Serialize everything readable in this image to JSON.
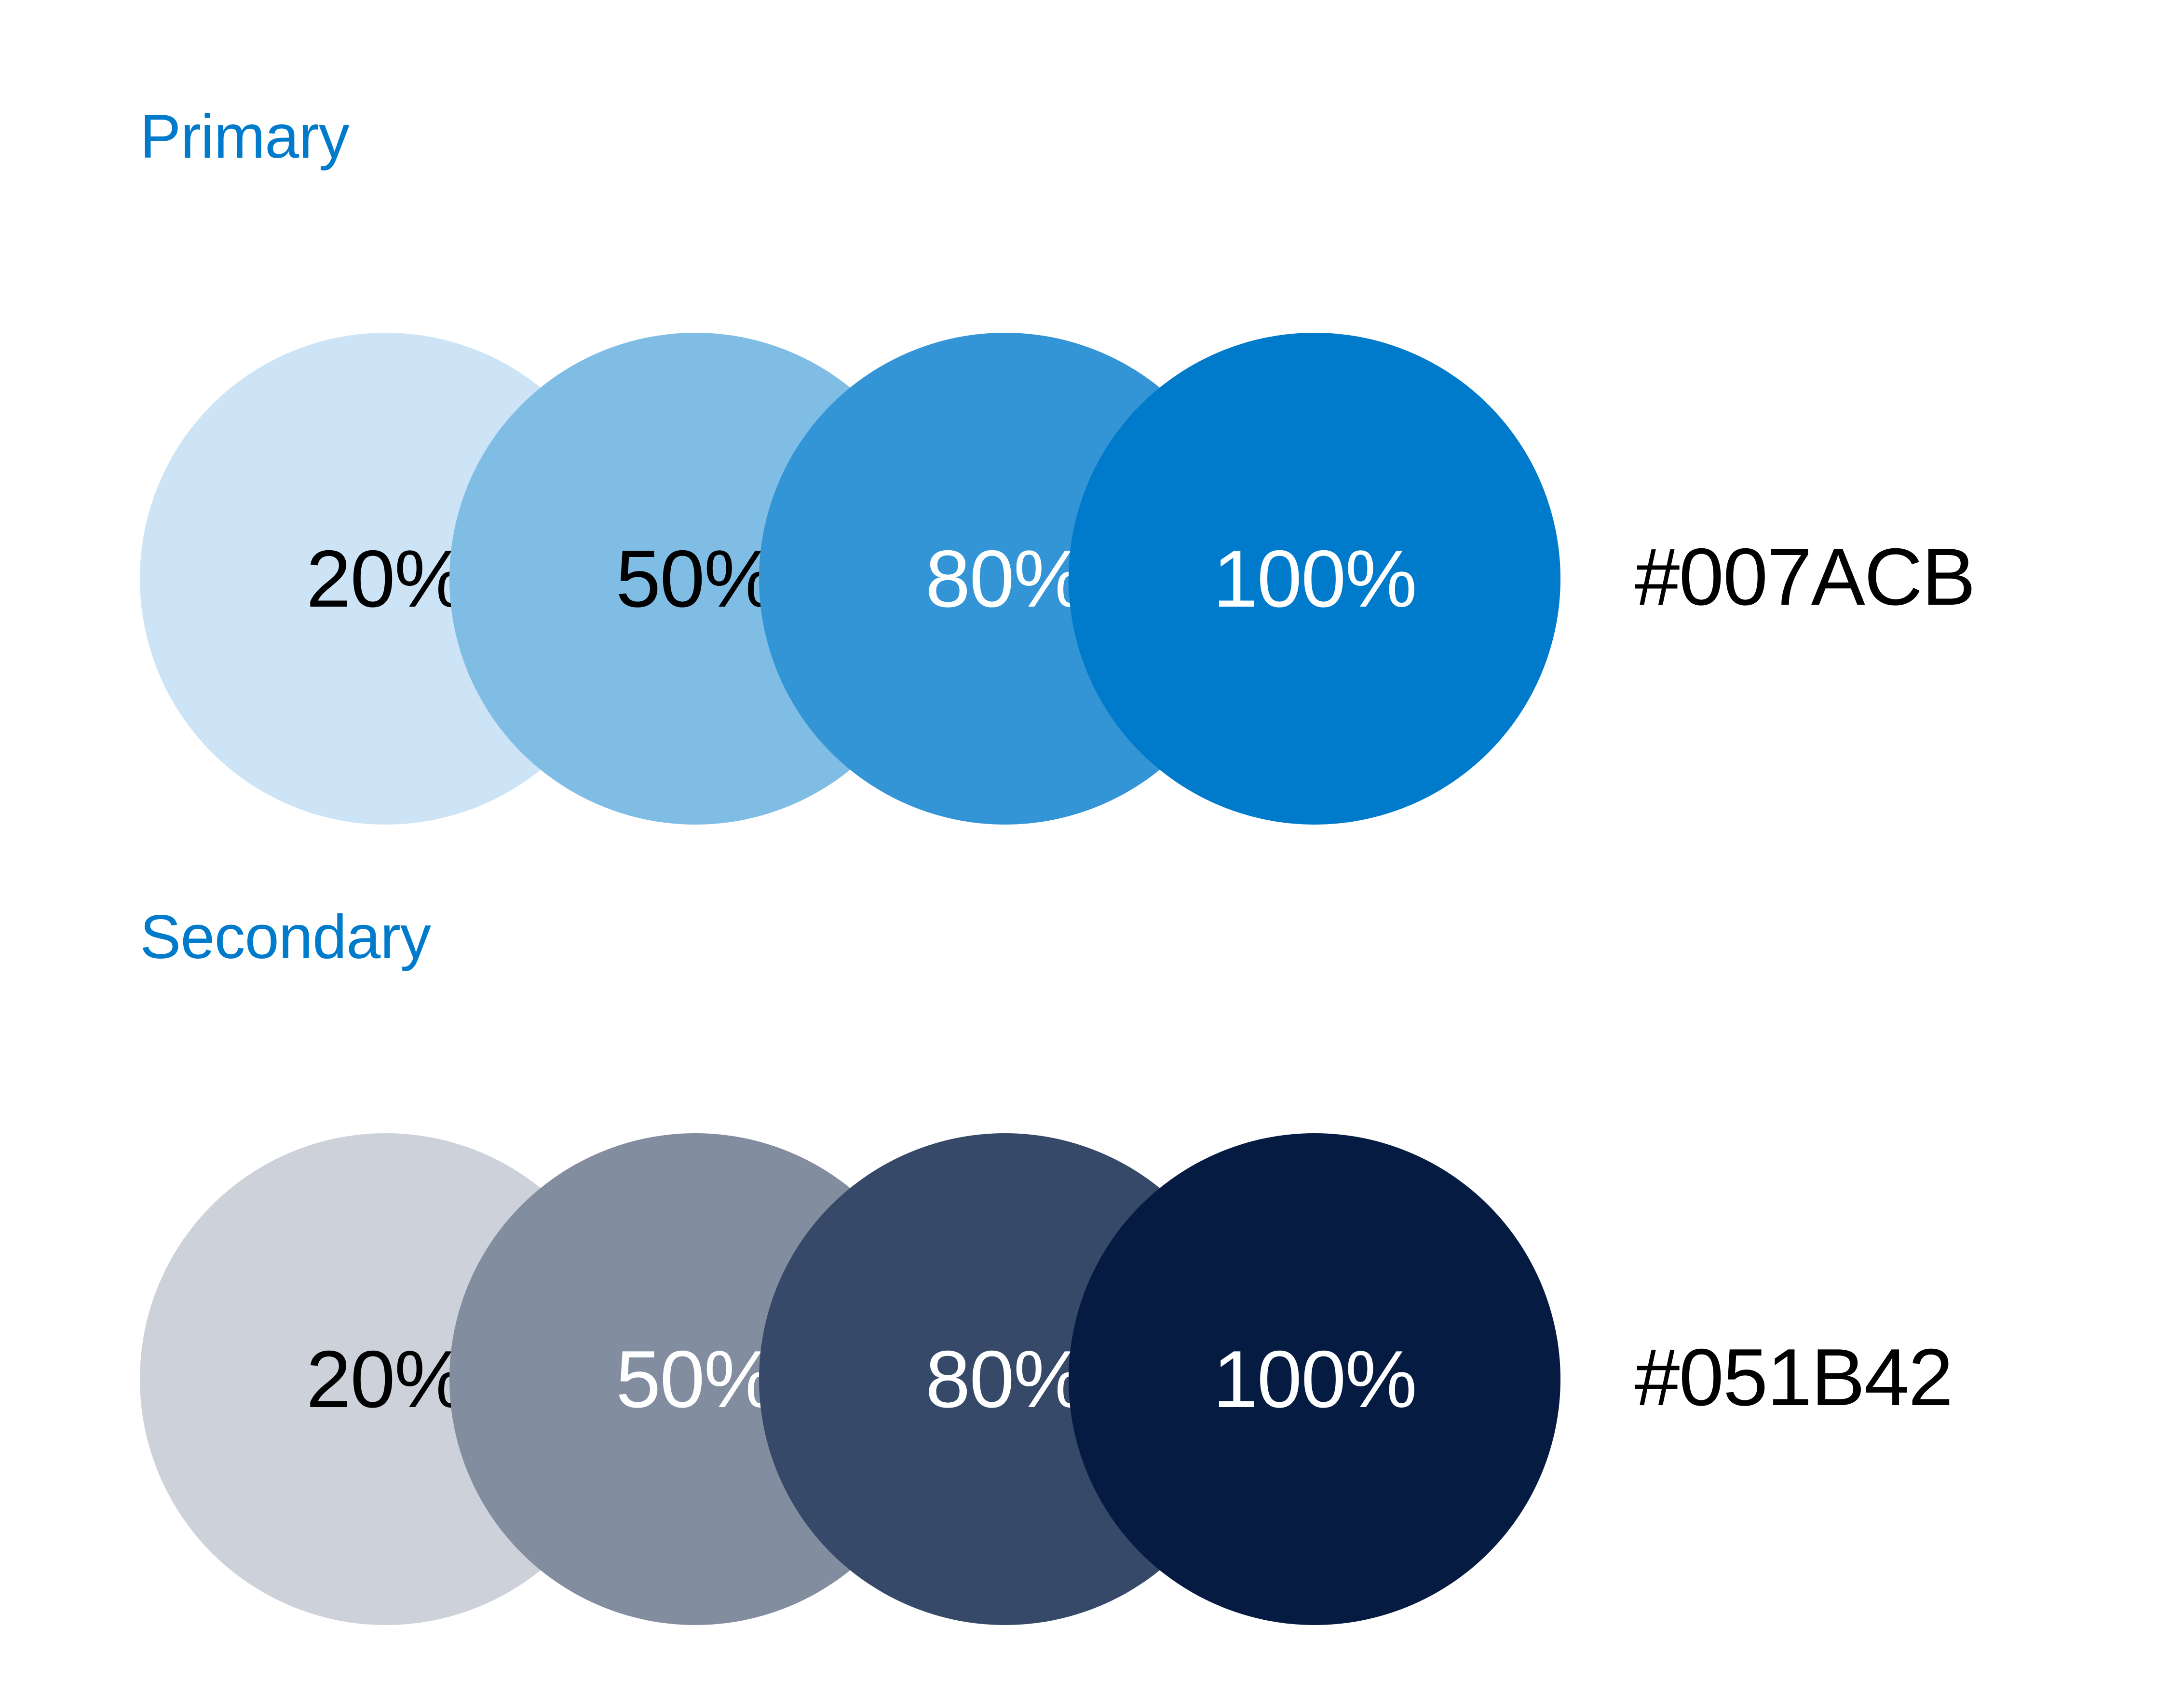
{
  "accent_color": "#007ACB",
  "palettes": [
    {
      "title": "Primary",
      "hex": "#007ACB",
      "swatches": [
        {
          "label": "20%",
          "color": "#CCE4F5",
          "text_color": "#000000"
        },
        {
          "label": "50%",
          "color": "#80BDE5",
          "text_color": "#000000"
        },
        {
          "label": "80%",
          "color": "#3395D6",
          "text_color": "#FFFFFF"
        },
        {
          "label": "100%",
          "color": "#007ACB",
          "text_color": "#FFFFFF"
        }
      ]
    },
    {
      "title": "Secondary",
      "hex": "#051B42",
      "swatches": [
        {
          "label": "20%",
          "color": "#CDD1D9",
          "text_color": "#000000"
        },
        {
          "label": "50%",
          "color": "#828DA0",
          "text_color": "#FFFFFF"
        },
        {
          "label": "80%",
          "color": "#374968",
          "text_color": "#FFFFFF"
        },
        {
          "label": "100%",
          "color": "#051B42",
          "text_color": "#FFFFFF"
        }
      ]
    }
  ]
}
